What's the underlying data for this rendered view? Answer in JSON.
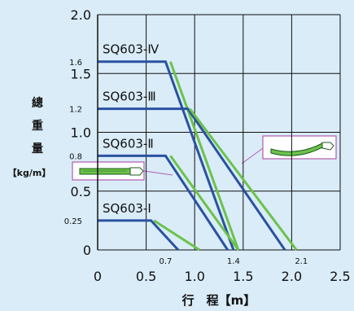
{
  "chart_data": {
    "type": "line",
    "xlabel": "行　程【m】",
    "ylabel_chars": [
      "總",
      "重",
      "量",
      "【kg/m】"
    ],
    "xlim": [
      0,
      2.5
    ],
    "ylim": [
      0,
      2.0
    ],
    "x_ticks": [
      "0",
      "0.5",
      "1.0",
      "1.5",
      "2.0",
      "2.5"
    ],
    "y_ticks": [
      "0",
      "0.5",
      "1.0",
      "1.5",
      "2.0"
    ],
    "extra_x_labels": [
      {
        "value": 0.7,
        "label": "0.7"
      },
      {
        "value": 1.4,
        "label": "1.4"
      },
      {
        "value": 2.1,
        "label": "2.1"
      }
    ],
    "extra_y_labels": [
      {
        "value": 0.25,
        "label": "0.25"
      },
      {
        "value": 0.8,
        "label": "0.8"
      },
      {
        "value": 1.2,
        "label": "1.2"
      },
      {
        "value": 1.6,
        "label": "1.6"
      }
    ],
    "grid": true,
    "series": [
      {
        "name": "SQ603-Ⅳ",
        "color": "#2a52a0",
        "points": [
          [
            0,
            1.6
          ],
          [
            0.7,
            1.6
          ],
          [
            1.4,
            0
          ]
        ]
      },
      {
        "name": "SQ603-Ⅳ",
        "color": "#6cc24a",
        "points": [
          [
            0.75,
            1.6
          ],
          [
            1.45,
            0
          ]
        ]
      },
      {
        "name": "SQ603-Ⅲ",
        "color": "#2a52a0",
        "points": [
          [
            0,
            1.2
          ],
          [
            0.93,
            1.2
          ],
          [
            1.93,
            0
          ]
        ]
      },
      {
        "name": "SQ603-Ⅲ",
        "color": "#6cc24a",
        "points": [
          [
            0.95,
            1.2
          ],
          [
            2.05,
            0
          ]
        ]
      },
      {
        "name": "SQ603-Ⅱ",
        "color": "#2a52a0",
        "points": [
          [
            0,
            0.8
          ],
          [
            0.7,
            0.8
          ],
          [
            1.34,
            0
          ]
        ]
      },
      {
        "name": "SQ603-Ⅱ",
        "color": "#6cc24a",
        "points": [
          [
            0.75,
            0.8
          ],
          [
            1.45,
            0
          ]
        ]
      },
      {
        "name": "SQ603-Ⅰ",
        "color": "#2a52a0",
        "points": [
          [
            0,
            0.25
          ],
          [
            0.55,
            0.25
          ],
          [
            0.83,
            0
          ]
        ]
      },
      {
        "name": "SQ603-Ⅰ",
        "color": "#6cc24a",
        "points": [
          [
            0.58,
            0.25
          ],
          [
            1.05,
            0
          ]
        ]
      }
    ],
    "series_labels": [
      {
        "label": "SQ603-Ⅳ",
        "x": 0.05,
        "y": 1.67
      },
      {
        "label": "SQ603-Ⅲ",
        "x": 0.05,
        "y": 1.27
      },
      {
        "label": "SQ603-Ⅱ",
        "x": 0.05,
        "y": 0.87
      },
      {
        "label": "SQ603-Ⅰ",
        "x": 0.05,
        "y": 0.32
      }
    ]
  }
}
